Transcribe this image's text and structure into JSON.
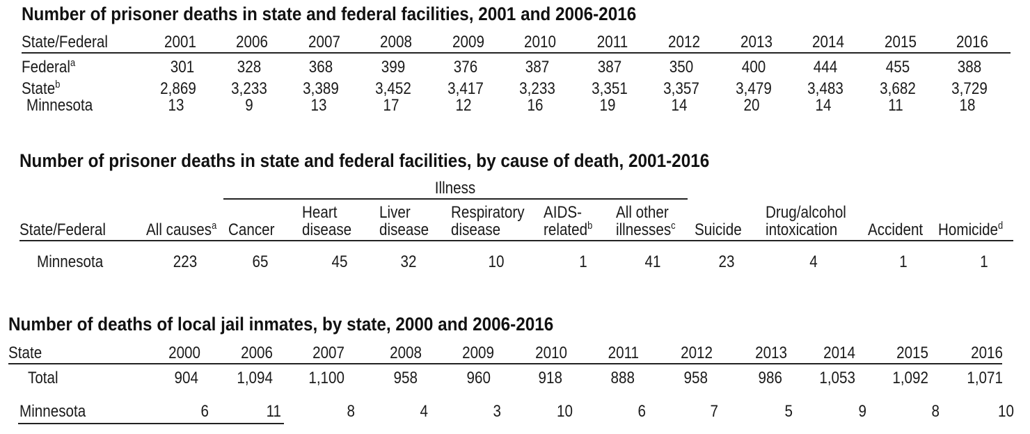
{
  "table1": {
    "title": "Number of prisoner deaths in state and federal facilities, 2001 and 2006-2016",
    "corner": "State/Federal",
    "years": [
      "2001",
      "2006",
      "2007",
      "2008",
      "2009",
      "2010",
      "2011",
      "2012",
      "2013",
      "2014",
      "2015",
      "2016"
    ],
    "rows": [
      {
        "label": "Federal",
        "sup": "a",
        "values": [
          "301",
          "328",
          "368",
          "399",
          "376",
          "387",
          "387",
          "350",
          "400",
          "444",
          "455",
          "388"
        ]
      },
      {
        "label": "State",
        "sup": "b",
        "values": [
          "2,869",
          "3,233",
          "3,389",
          "3,452",
          "3,417",
          "3,233",
          "3,351",
          "3,357",
          "3,479",
          "3,483",
          "3,682",
          "3,729"
        ]
      },
      {
        "label": "Minnesota",
        "sup": "",
        "values": [
          "13",
          "9",
          "13",
          "17",
          "12",
          "16",
          "19",
          "14",
          "20",
          "14",
          "11",
          "18"
        ]
      }
    ]
  },
  "table2": {
    "title": "Number of prisoner deaths in state and federal facilities, by cause of death, 2001-2016",
    "group_header": "Illness",
    "columns": [
      {
        "l1": "",
        "l2": "State/Federal",
        "sup": ""
      },
      {
        "l1": "",
        "l2": "All causes",
        "sup": "a"
      },
      {
        "l1": "",
        "l2": "Cancer",
        "sup": ""
      },
      {
        "l1": "Heart",
        "l2": "disease",
        "sup": ""
      },
      {
        "l1": "Liver",
        "l2": "disease",
        "sup": ""
      },
      {
        "l1": "Respiratory",
        "l2": "disease",
        "sup": ""
      },
      {
        "l1": "AIDS-",
        "l2": "related",
        "sup": "b"
      },
      {
        "l1": "All other",
        "l2": "illnesses",
        "sup": "c"
      },
      {
        "l1": "",
        "l2": "Suicide",
        "sup": ""
      },
      {
        "l1": "Drug/alcohol",
        "l2": "intoxication",
        "sup": ""
      },
      {
        "l1": "",
        "l2": "Accident",
        "sup": ""
      },
      {
        "l1": "",
        "l2": "Homicide",
        "sup": "d"
      }
    ],
    "row": {
      "label": "Minnesota",
      "values": [
        "223",
        "65",
        "45",
        "32",
        "10",
        "1",
        "41",
        "23",
        "4",
        "1",
        "1"
      ]
    }
  },
  "table3": {
    "title": "Number of deaths of local jail inmates, by state, 2000 and 2006-2016",
    "corner": "State",
    "years": [
      "2000",
      "2006",
      "2007",
      "2008",
      "2009",
      "2010",
      "2011",
      "2012",
      "2013",
      "2014",
      "2015",
      "2016"
    ],
    "rows": [
      {
        "label": "Total",
        "values": [
          "904",
          "1,094",
          "1,100",
          "958",
          "960",
          "918",
          "888",
          "958",
          "986",
          "1,053",
          "1,092",
          "1,071"
        ]
      },
      {
        "label": "Minnesota",
        "values": [
          "6",
          "11",
          "8",
          "4",
          "3",
          "10",
          "6",
          "7",
          "5",
          "9",
          "8",
          "10"
        ]
      }
    ]
  }
}
